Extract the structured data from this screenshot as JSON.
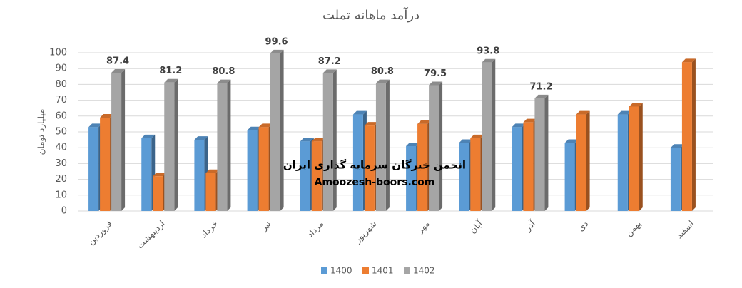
{
  "chart_data": {
    "type": "bar",
    "title": "درآمد ماهانه تملت",
    "y_label": "میلیارد تومان",
    "categories": [
      "فروردین",
      "اردیبهشت",
      "خرداد",
      "تیر",
      "مرداد",
      "شهریور",
      "مهر",
      "آبان",
      "آذر",
      "دی",
      "بهمن",
      "اسفند"
    ],
    "series": [
      {
        "name": "1400",
        "color": "#5b9bd5",
        "values": [
          53,
          46,
          45,
          51,
          44,
          61,
          41,
          43,
          53,
          43,
          61,
          40
        ]
      },
      {
        "name": "1401",
        "color": "#ed7d31",
        "values": [
          59,
          22,
          24,
          53,
          44,
          54,
          55,
          46,
          56,
          61,
          66,
          94
        ]
      },
      {
        "name": "1402",
        "color": "#a5a5a5",
        "values": [
          87.4,
          81.2,
          80.8,
          99.6,
          87.2,
          80.8,
          79.5,
          93.8,
          71.2,
          null,
          null,
          null
        ],
        "data_labels": true
      }
    ],
    "ylim": [
      0,
      100
    ],
    "yticks": [
      0,
      10,
      20,
      30,
      40,
      50,
      60,
      70,
      80,
      90,
      100
    ],
    "grid": true,
    "legend": "bottom",
    "watermark": [
      "انجمن خبرگان سرمایه گذاری ایران",
      "Amoozesh-boors.com"
    ]
  }
}
